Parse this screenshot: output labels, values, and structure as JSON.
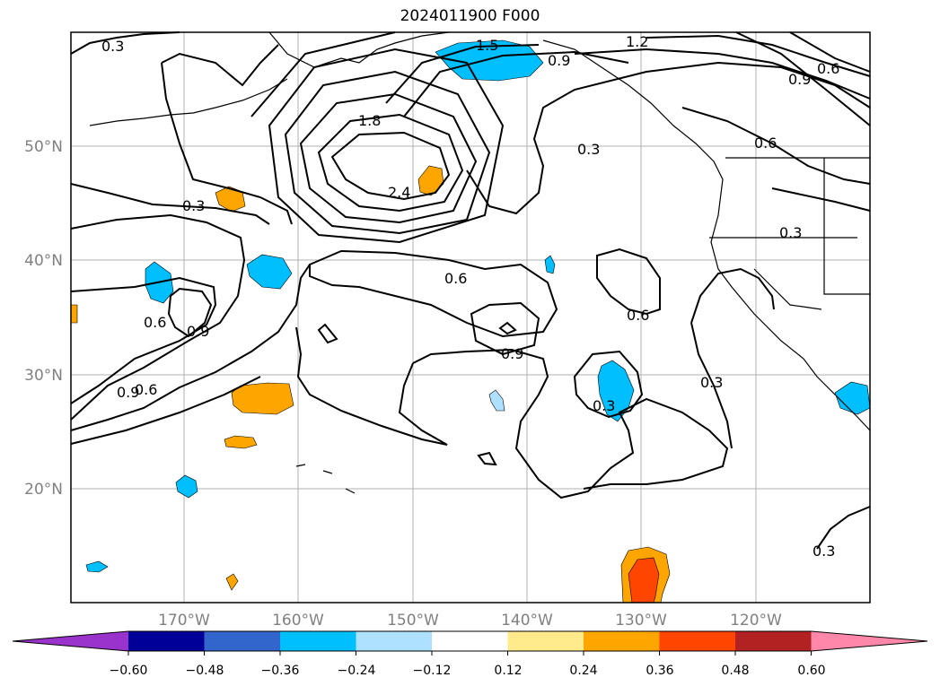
{
  "title": "2024011900 F000",
  "lat_labels": [
    "50°N",
    "40°N",
    "30°N",
    "20°N"
  ],
  "lon_labels": [
    "170°W",
    "160°W",
    "150°W",
    "140°W",
    "130°W",
    "120°W"
  ],
  "contour_labels": [
    "0.3",
    "0.3",
    "0.6",
    "0.9",
    "1.2",
    "1.5",
    "1.8",
    "2.4",
    "0.3",
    "0.6",
    "0.9",
    "0.6",
    "0.9",
    "0.6",
    "0.9",
    "0.6",
    "0.9",
    "0.3",
    "0.3",
    "0.3",
    "0.3",
    "0.6"
  ],
  "colorbar": {
    "colors": [
      "#9933cc",
      "#000099",
      "#3366cc",
      "#00bfff",
      "#aee0ff",
      "#ffffff",
      "#ffeb8c",
      "#ffa500",
      "#ff4500",
      "#b22222",
      "#ff88aa"
    ],
    "tick_labels": [
      "−0.60",
      "−0.48",
      "−0.36",
      "−0.24",
      "−0.12",
      "0.12",
      "0.24",
      "0.36",
      "0.48",
      "0.60"
    ]
  }
}
